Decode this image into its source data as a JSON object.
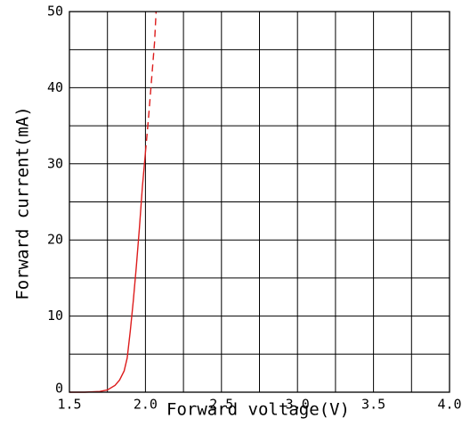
{
  "chart_data": {
    "type": "line",
    "xlabel": "Forward voltage(V)",
    "ylabel": "Forward current(mA)",
    "xlim": [
      1.5,
      4.0
    ],
    "ylim": [
      0,
      50
    ],
    "x_ticks": [
      1.5,
      2.0,
      2.5,
      3.0,
      3.5,
      4.0
    ],
    "x_tick_labels": [
      "1.5",
      "2.0",
      "2.5",
      "3.0",
      "3.5",
      "4.0"
    ],
    "y_ticks": [
      0,
      10,
      20,
      30,
      40,
      50
    ],
    "y_tick_labels": [
      "0",
      "10",
      "20",
      "30",
      "40",
      "50"
    ],
    "x_grid_step": 0.25,
    "y_grid_step": 5,
    "grid": true,
    "series": [
      {
        "color": "#dd1c1c",
        "style": "solid",
        "x": [
          1.5,
          1.6,
          1.7,
          1.75,
          1.8,
          1.83,
          1.86,
          1.88,
          1.9,
          1.92,
          1.94,
          1.96,
          1.98,
          2.0
        ],
        "y": [
          0,
          0,
          0.1,
          0.3,
          0.9,
          1.6,
          2.8,
          4.5,
          8,
          12,
          16.5,
          21.5,
          27,
          31.5
        ]
      },
      {
        "color": "#dd1c1c",
        "style": "dashed",
        "x": [
          2.0,
          2.02,
          2.04,
          2.06,
          2.07
        ],
        "y": [
          31.5,
          36,
          41,
          46,
          50
        ]
      }
    ]
  }
}
